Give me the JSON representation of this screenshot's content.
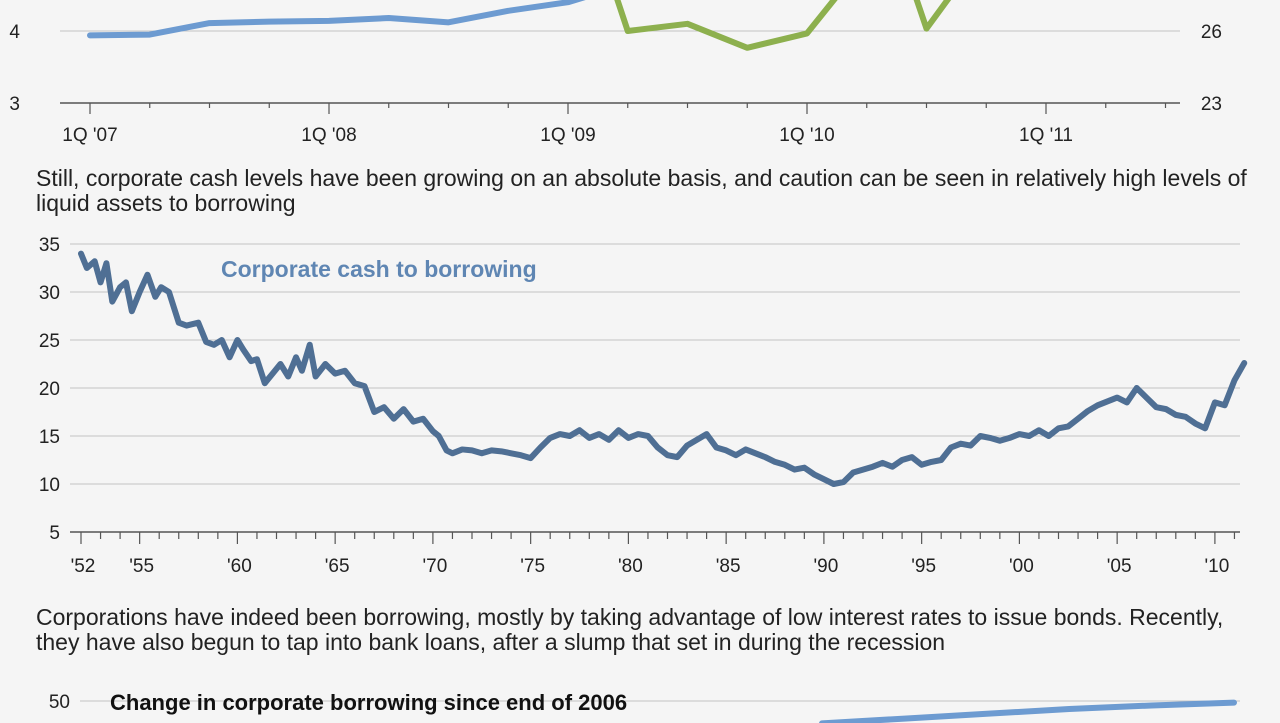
{
  "colors": {
    "series_blue": "#6d9bd1",
    "series_green": "#8db04e",
    "series_navy": "#4f6f94",
    "label_blue": "#5f86b3",
    "axis": "#555555",
    "grid": "#c4c4c4",
    "background": "#f5f5f5"
  },
  "captions": {
    "middle": "Still, corporate cash levels have been growing on an absolute basis, and caution can be seen in relatively high levels of liquid assets to borrowing",
    "bottom": "Corporations have indeed been borrowing, mostly by taking advantage of low interest rates to issue bonds. Recently, they have also begun to tap into bank loans, after a slump that set in during the recession"
  },
  "chart_data": [
    {
      "type": "line",
      "title": "",
      "x_tick_labels": [
        "1Q '07",
        "1Q '08",
        "1Q '09",
        "1Q '10",
        "1Q '11"
      ],
      "y_left_ticks": [
        "3",
        "4"
      ],
      "y_right_ticks": [
        "23",
        "26"
      ],
      "ylim_left": [
        3,
        5
      ],
      "ylim_right": [
        23,
        29
      ],
      "grid": true,
      "series": [
        {
          "axis": "left",
          "x": [
            2007.0,
            2007.25,
            2007.5,
            2007.75,
            2008.0,
            2008.25,
            2008.5,
            2008.75,
            2009.0,
            2009.15
          ],
          "values": [
            3.94,
            3.95,
            4.11,
            4.13,
            4.14,
            4.18,
            4.12,
            4.28,
            4.4,
            4.55
          ]
        },
        {
          "axis": "right",
          "x": [
            2009.1,
            2009.25,
            2009.5,
            2009.75,
            2010.0,
            2010.25,
            2010.35,
            2010.5,
            2010.75,
            2010.95,
            2011.25,
            2011.4
          ],
          "values": [
            30.5,
            26.0,
            26.3,
            25.3,
            25.9,
            29.0,
            30.5,
            26.1,
            29.5,
            30.5,
            28.8,
            30.5
          ]
        }
      ]
    },
    {
      "type": "line",
      "title": "",
      "x_tick_labels": [
        "'52",
        "'55",
        "'60",
        "'65",
        "'70",
        "'75",
        "'80",
        "'85",
        "'90",
        "'95",
        "'00",
        "'05",
        "'10"
      ],
      "y_ticks": [
        "5",
        "10",
        "15",
        "20",
        "25",
        "30",
        "35"
      ],
      "ylim": [
        5,
        35
      ],
      "grid": true,
      "series": [
        {
          "name": "Corporate cash to borrowing",
          "x": [
            1952.0,
            1952.3,
            1952.7,
            1953.0,
            1953.3,
            1953.6,
            1954.0,
            1954.3,
            1954.6,
            1955.0,
            1955.4,
            1955.8,
            1956.1,
            1956.5,
            1957.0,
            1957.4,
            1958.0,
            1958.4,
            1958.8,
            1959.2,
            1959.6,
            1960.0,
            1960.3,
            1960.7,
            1961.0,
            1961.4,
            1961.8,
            1962.2,
            1962.6,
            1963.0,
            1963.3,
            1963.7,
            1964.0,
            1964.5,
            1965.0,
            1965.5,
            1966.0,
            1966.5,
            1967.0,
            1967.5,
            1968.0,
            1968.5,
            1969.0,
            1969.5,
            1970.0,
            1970.3,
            1970.7,
            1971.0,
            1971.5,
            1972.0,
            1972.5,
            1973.0,
            1973.5,
            1974.0,
            1974.5,
            1975.0,
            1975.5,
            1976.0,
            1976.5,
            1977.0,
            1977.5,
            1978.0,
            1978.5,
            1979.0,
            1979.5,
            1980.0,
            1980.5,
            1981.0,
            1981.5,
            1982.0,
            1982.5,
            1983.0,
            1983.5,
            1984.0,
            1984.5,
            1985.0,
            1985.5,
            1986.0,
            1986.5,
            1987.0,
            1987.5,
            1988.0,
            1988.5,
            1989.0,
            1989.5,
            1990.0,
            1990.5,
            1991.0,
            1991.5,
            1992.0,
            1992.5,
            1993.0,
            1993.5,
            1994.0,
            1994.5,
            1995.0,
            1995.5,
            1996.0,
            1996.5,
            1997.0,
            1997.5,
            1998.0,
            1998.5,
            1999.0,
            1999.5,
            2000.0,
            2000.5,
            2001.0,
            2001.5,
            2002.0,
            2002.5,
            2003.0,
            2003.5,
            2004.0,
            2004.5,
            2005.0,
            2005.5,
            2006.0,
            2006.5,
            2007.0,
            2007.5,
            2008.0,
            2008.5,
            2009.0,
            2009.5,
            2010.0,
            2010.5,
            2011.0,
            2011.5
          ],
          "values": [
            34.0,
            32.5,
            33.2,
            31.0,
            33.0,
            29.0,
            30.5,
            31.0,
            28.0,
            30.0,
            31.8,
            29.5,
            30.5,
            30.0,
            26.8,
            26.5,
            26.8,
            24.8,
            24.5,
            25.0,
            23.2,
            25.0,
            24.0,
            22.8,
            23.0,
            20.5,
            21.5,
            22.5,
            21.2,
            23.2,
            21.8,
            24.5,
            21.2,
            22.5,
            21.5,
            21.8,
            20.5,
            20.2,
            17.5,
            18.0,
            16.8,
            17.8,
            16.5,
            16.8,
            15.5,
            15.0,
            13.5,
            13.2,
            13.6,
            13.5,
            13.2,
            13.5,
            13.4,
            13.2,
            13.0,
            12.7,
            13.8,
            14.8,
            15.2,
            15.0,
            15.6,
            14.8,
            15.2,
            14.6,
            15.6,
            14.8,
            15.2,
            15.0,
            13.8,
            13.0,
            12.8,
            14.0,
            14.6,
            15.2,
            13.8,
            13.5,
            13.0,
            13.6,
            13.2,
            12.8,
            12.3,
            12.0,
            11.5,
            11.7,
            11.0,
            10.5,
            10.0,
            10.2,
            11.2,
            11.5,
            11.8,
            12.2,
            11.8,
            12.5,
            12.8,
            12.0,
            12.3,
            12.5,
            13.8,
            14.2,
            14.0,
            15.0,
            14.8,
            14.5,
            14.8,
            15.2,
            15.0,
            15.6,
            15.0,
            15.8,
            16.0,
            16.8,
            17.6,
            18.2,
            18.6,
            19.0,
            18.5,
            20.0,
            19.0,
            18.0,
            17.8,
            17.2,
            17.0,
            16.3,
            15.8,
            18.5,
            18.2,
            20.8,
            22.6
          ]
        }
      ]
    },
    {
      "type": "line",
      "title": "Change in corporate borrowing since end of 2006",
      "y_ticks": [
        "50"
      ],
      "ylim": [
        0,
        55
      ],
      "grid": true,
      "series": [
        {
          "x": [
            2010.6,
            2010.8,
            2011.0,
            2011.2,
            2011.4,
            2011.6
          ],
          "values": [
            43.0,
            44.5,
            46.0,
            47.5,
            48.6,
            49.5
          ]
        }
      ]
    }
  ]
}
